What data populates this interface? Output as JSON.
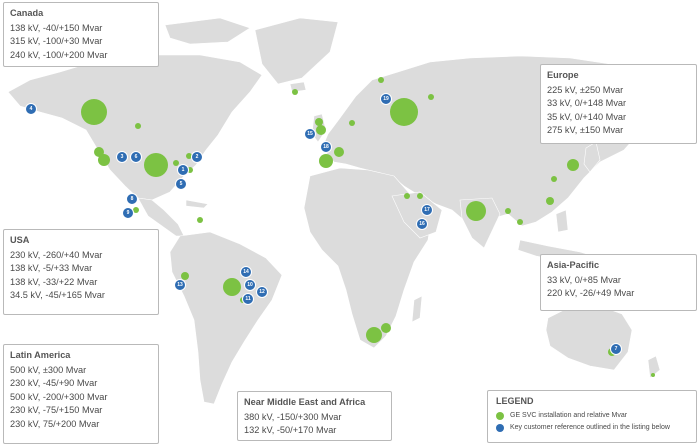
{
  "regions": {
    "canada": {
      "title": "Canada",
      "lines": [
        "138 kV, -40/+150 Mvar",
        "315 kV, -100/+30 Mvar",
        "240 kV, -100/+200 Mvar"
      ]
    },
    "europe": {
      "title": "Europe",
      "lines": [
        "225 kV, ±250 Mvar",
        "33 kV, 0/+148 Mvar",
        "35 kV, 0/+140 Mvar",
        "275 kV, ±150 Mvar"
      ]
    },
    "usa": {
      "title": "USA",
      "lines": [
        "230 kV, -260/+40 Mvar",
        "138 kV, -5/+33 Mvar",
        "138 kV, -33/+22 Mvar",
        "34.5 kV, -45/+165 Mvar"
      ]
    },
    "asia_pacific": {
      "title": "Asia-Pacific",
      "lines": [
        "33 kV, 0/+85 Mvar",
        "220 kV, -26/+49 Mvar"
      ]
    },
    "latin_america": {
      "title": "Latin America",
      "lines": [
        "500 kV, ±300 Mvar",
        "230 kV, -45/+90 Mvar",
        "500 kV, -200/+300 Mvar",
        "230 kV, -75/+150 Mvar",
        "230 kV, 75/+200 Mvar"
      ]
    },
    "near_middle_east_africa": {
      "title": "Near Middle East and Africa",
      "lines": [
        "380 kV, -150/+300 Mvar",
        "132 kV, -50/+170 Mvar"
      ]
    }
  },
  "legend": {
    "title": "LEGEND",
    "green_label": "GE SVC installation and relative Mvar",
    "blue_label": "Key customer reference outlined in the listing below"
  },
  "colors": {
    "installation": "#7cc243",
    "reference": "#2f6db3",
    "land": "#dcdcdc"
  },
  "references": [
    {
      "num": "1"
    },
    {
      "num": "2"
    },
    {
      "num": "3"
    },
    {
      "num": "4"
    },
    {
      "num": "5"
    },
    {
      "num": "6"
    },
    {
      "num": "7"
    },
    {
      "num": "8"
    },
    {
      "num": "9"
    },
    {
      "num": "10"
    },
    {
      "num": "11"
    },
    {
      "num": "12"
    },
    {
      "num": "13"
    },
    {
      "num": "14"
    },
    {
      "num": "15"
    },
    {
      "num": "16"
    },
    {
      "num": "17"
    },
    {
      "num": "18"
    },
    {
      "num": "19"
    }
  ]
}
